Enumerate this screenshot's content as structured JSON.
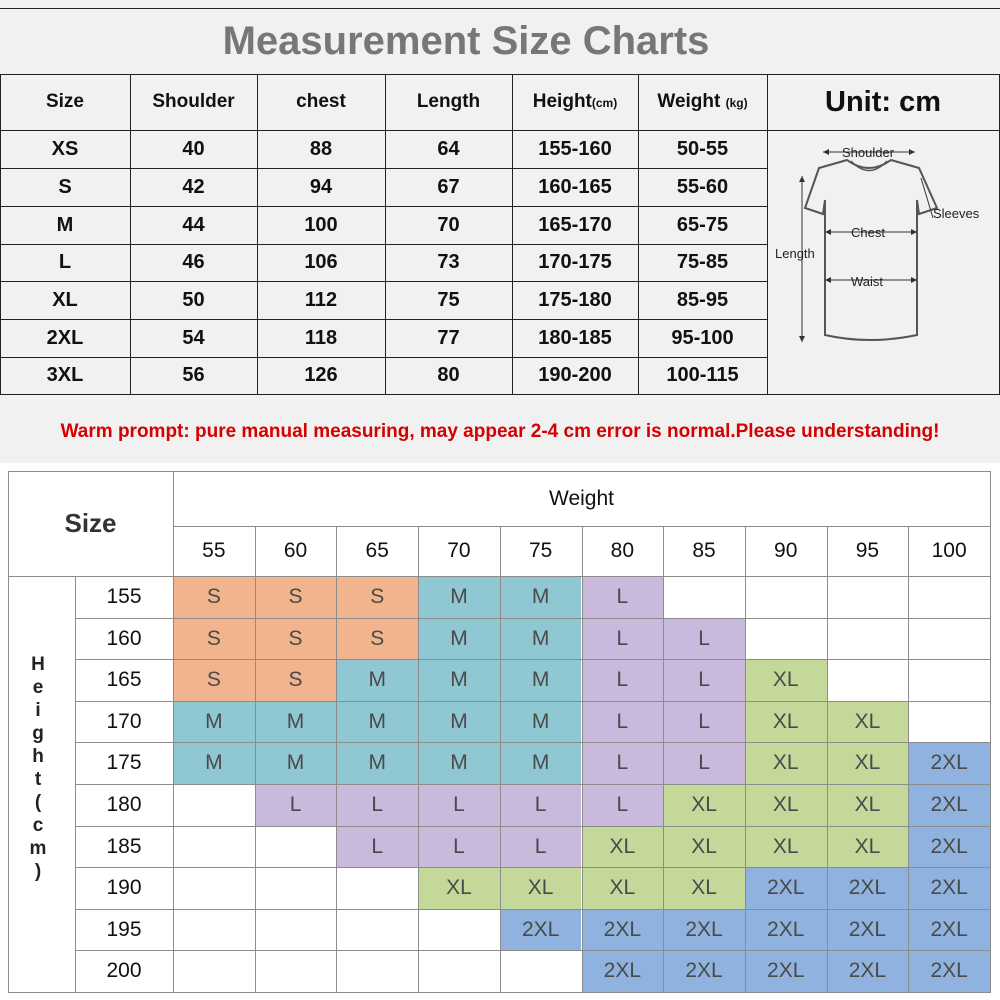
{
  "title": "Measurement Size Charts",
  "unit_label": "Unit: cm",
  "table": {
    "headers": [
      {
        "main": "Size",
        "sub": ""
      },
      {
        "main": "Shoulder",
        "sub": ""
      },
      {
        "main": "chest",
        "sub": ""
      },
      {
        "main": "Length",
        "sub": ""
      },
      {
        "main": "Height",
        "sub": "(cm)"
      },
      {
        "main": "Weight ",
        "sub": "(kg)"
      }
    ],
    "rows": [
      [
        "XS",
        "40",
        "88",
        "64",
        "155-160",
        "50-55"
      ],
      [
        "S",
        "42",
        "94",
        "67",
        "160-165",
        "55-60"
      ],
      [
        "M",
        "44",
        "100",
        "70",
        "165-170",
        "65-75"
      ],
      [
        "L",
        "46",
        "106",
        "73",
        "170-175",
        "75-85"
      ],
      [
        "XL",
        "50",
        "112",
        "75",
        "175-180",
        "85-95"
      ],
      [
        "2XL",
        "54",
        "118",
        "77",
        "180-185",
        "95-100"
      ],
      [
        "3XL",
        "56",
        "126",
        "80",
        "190-200",
        "100-115"
      ]
    ]
  },
  "diagram_labels": {
    "shoulder": "Shoulder",
    "sleeves": "Sleeves",
    "chest": "Chest",
    "length": "Length",
    "waist": "Waist"
  },
  "warm_prompt": "Warm prompt: pure manual measuring, may appear 2-4 cm error is normal.Please understanding!",
  "grid": {
    "size_label": "Size",
    "weight_label": "Weight",
    "height_label_chars": [
      "H",
      "e",
      "i",
      "g",
      "h",
      "t",
      "(",
      "c",
      "m",
      ")"
    ],
    "weights": [
      "55",
      "60",
      "65",
      "70",
      "75",
      "80",
      "85",
      "90",
      "95",
      "100"
    ],
    "heights": [
      "155",
      "160",
      "165",
      "170",
      "175",
      "180",
      "185",
      "190",
      "195",
      "200"
    ],
    "cells": [
      [
        "S",
        "S",
        "S",
        "M",
        "M",
        "L",
        "",
        "",
        "",
        ""
      ],
      [
        "S",
        "S",
        "S",
        "M",
        "M",
        "L",
        "L",
        "",
        "",
        ""
      ],
      [
        "S",
        "S",
        "M",
        "M",
        "M",
        "L",
        "L",
        "XL",
        "",
        ""
      ],
      [
        "M",
        "M",
        "M",
        "M",
        "M",
        "L",
        "L",
        "XL",
        "XL",
        ""
      ],
      [
        "M",
        "M",
        "M",
        "M",
        "M",
        "L",
        "L",
        "XL",
        "XL",
        "2XL"
      ],
      [
        "",
        "L",
        "L",
        "L",
        "L",
        "L",
        "XL",
        "XL",
        "XL",
        "2XL"
      ],
      [
        "",
        "",
        "L",
        "L",
        "L",
        "XL",
        "XL",
        "XL",
        "XL",
        "2XL"
      ],
      [
        "",
        "",
        "",
        "XL",
        "XL",
        "XL",
        "XL",
        "2XL",
        "2XL",
        "2XL"
      ],
      [
        "",
        "",
        "",
        "",
        "2XL",
        "2XL",
        "2XL",
        "2XL",
        "2XL",
        "2XL"
      ],
      [
        "",
        "",
        "",
        "",
        "",
        "2XL",
        "2XL",
        "2XL",
        "2XL",
        "2XL"
      ]
    ],
    "colors": {
      "S": "#f2b48c",
      "M": "#8fc7d3",
      "L": "#c8b9dd",
      "XL": "#c4d89a",
      "2XL": "#8fb3de"
    }
  }
}
